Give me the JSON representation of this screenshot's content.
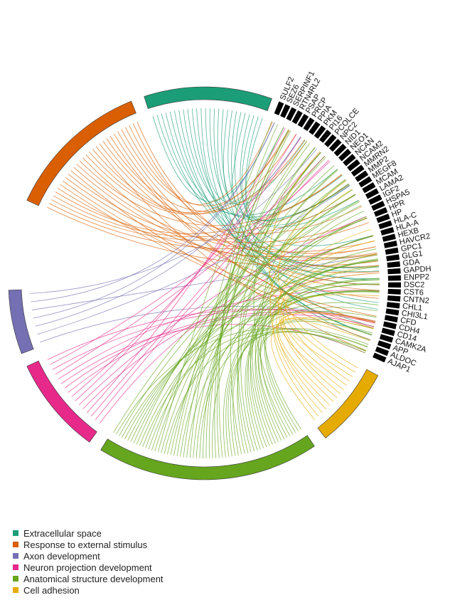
{
  "categories": [
    {
      "name": "Extracellular space",
      "color": "#1b9e77"
    },
    {
      "name": "Response to external stimulus",
      "color": "#d95f02"
    },
    {
      "name": "Axon development",
      "color": "#7570b3"
    },
    {
      "name": "Neuron projection development",
      "color": "#e7298a"
    },
    {
      "name": "Anatomical structure development",
      "color": "#66a61e"
    },
    {
      "name": "Cell adhesion",
      "color": "#e6ab02"
    }
  ],
  "genes": [
    "SULF2",
    "SEZ6",
    "SERPINF1",
    "RTN4RL2",
    "PSAP",
    "PRCP",
    "PPIA",
    "PKM",
    "PI16",
    "PCOLCE",
    "NPC2",
    "NID1",
    "NEO1",
    "NCAN",
    "NCAM2",
    "MMRN2",
    "MMP2",
    "MEGF8",
    "MCAM",
    "LAMA2",
    "IGF2",
    "HSPA5",
    "HPR",
    "HP",
    "HLA-C",
    "HLA-A",
    "HEXB",
    "HAVCR2",
    "GPC1",
    "GLG1",
    "GDA",
    "GAPDH",
    "ENPP2",
    "DSC2",
    "CST6",
    "CNTN2",
    "CHL1",
    "CHI3L1",
    "CFD",
    "CDH4",
    "CD14",
    "CAMK2A",
    "APP",
    "ALDOC",
    "AJAP1"
  ],
  "gene_color": "#000000"
}
